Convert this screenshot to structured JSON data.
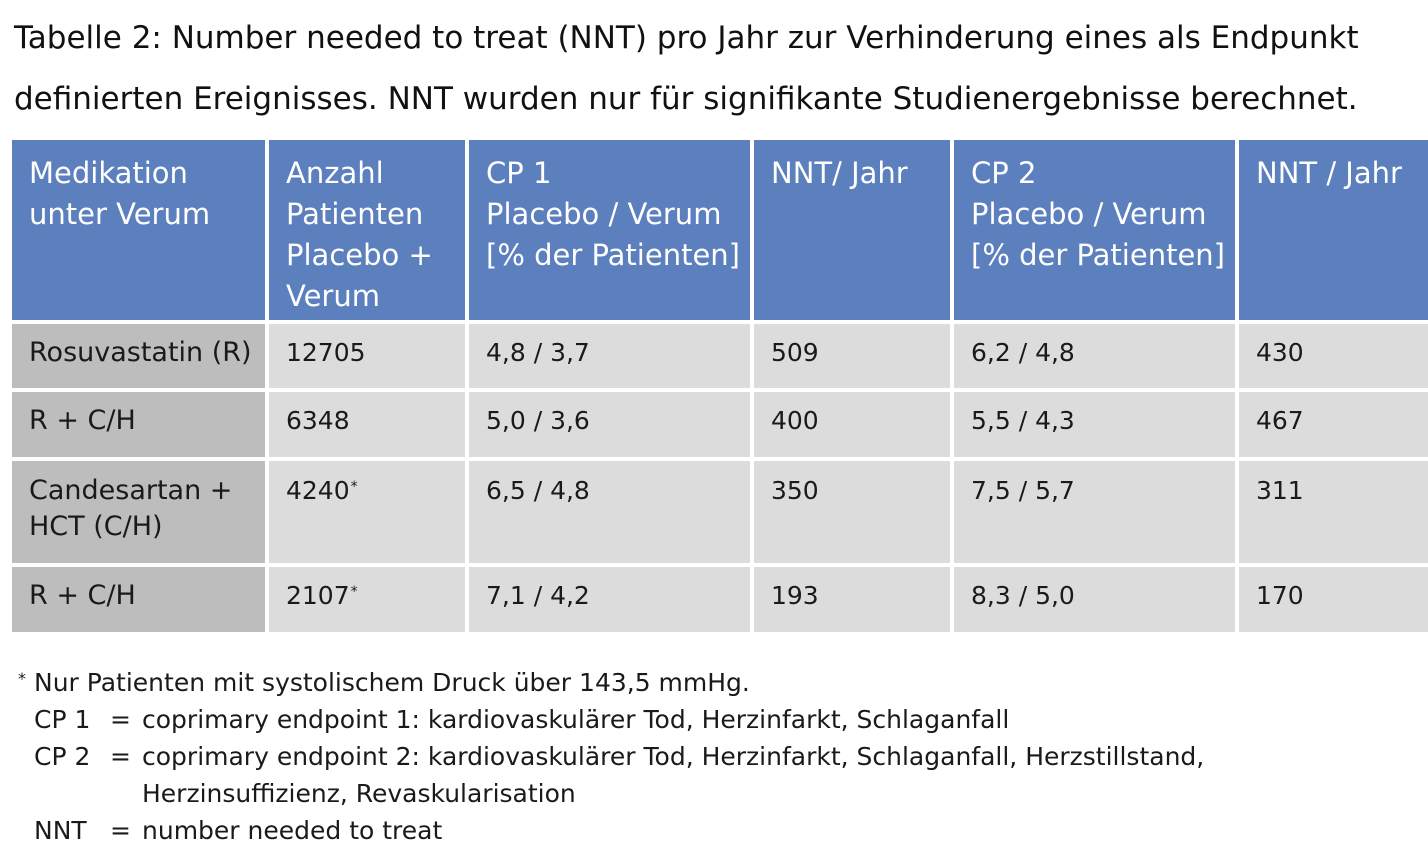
{
  "caption": {
    "line1": "Tabelle 2: Number needed to treat (NNT) pro Jahr zur Verhinderung eines als Endpunkt",
    "line2": "definierten Ereignisses. NNT wurden nur für signifikante Studienergebnisse berechnet."
  },
  "table": {
    "headers": [
      [
        "Medikation",
        "unter Verum"
      ],
      [
        "Anzahl",
        "Patienten",
        "Placebo +",
        "Verum"
      ],
      [
        "CP 1",
        "Placebo / Verum",
        "[% der Patienten]"
      ],
      [
        "NNT/ Jahr"
      ],
      [
        "CP 2",
        "Placebo / Verum",
        "[% der Patienten]"
      ],
      [
        "NNT / Jahr"
      ]
    ],
    "rows": [
      {
        "medication": [
          "Rosuvastatin (R)"
        ],
        "patients": "12705",
        "star": "",
        "cp1": "4,8 / 3,7",
        "nnt1": "509",
        "cp2": "6,2 / 4,8",
        "nnt2": "430"
      },
      {
        "medication": [
          "R + C/H"
        ],
        "patients": "6348",
        "star": "",
        "cp1": "5,0 / 3,6",
        "nnt1": "400",
        "cp2": "5,5 / 4,3",
        "nnt2": "467"
      },
      {
        "medication": [
          "Candesartan +",
          "HCT (C/H)"
        ],
        "patients": "4240",
        "star": "*",
        "cp1": "6,5 / 4,8",
        "nnt1": "350",
        "cp2": "7,5 / 5,7",
        "nnt2": "311"
      },
      {
        "medication": [
          "R + C/H"
        ],
        "patients": "2107",
        "star": "*",
        "cp1": "7,1 / 4,2",
        "nnt1": "193",
        "cp2": "8,3 / 5,0",
        "nnt2": "170"
      }
    ]
  },
  "footnotes": {
    "star_symbol": "*",
    "star_text": "Nur Patienten mit systolischem Druck über 143,5 mmHg.",
    "abbreviations": [
      {
        "key": "CP 1",
        "eq": "=",
        "lines": [
          "coprimary endpoint 1: kardiovaskulärer Tod, Herzinfarkt, Schlaganfall"
        ]
      },
      {
        "key": "CP 2",
        "eq": "=",
        "lines": [
          "coprimary endpoint 2: kardiovaskulärer Tod, Herzinfarkt, Schlaganfall, Herzstillstand,",
          "Herzinsuffizienz, Revaskularisation"
        ]
      },
      {
        "key": "NNT",
        "eq": "=",
        "lines": [
          "number needed to treat"
        ]
      }
    ]
  },
  "colors": {
    "header_bg": "#5c7fbe",
    "first_col_bg": "#bdbdbd",
    "cell_bg": "#dcdcdc"
  }
}
